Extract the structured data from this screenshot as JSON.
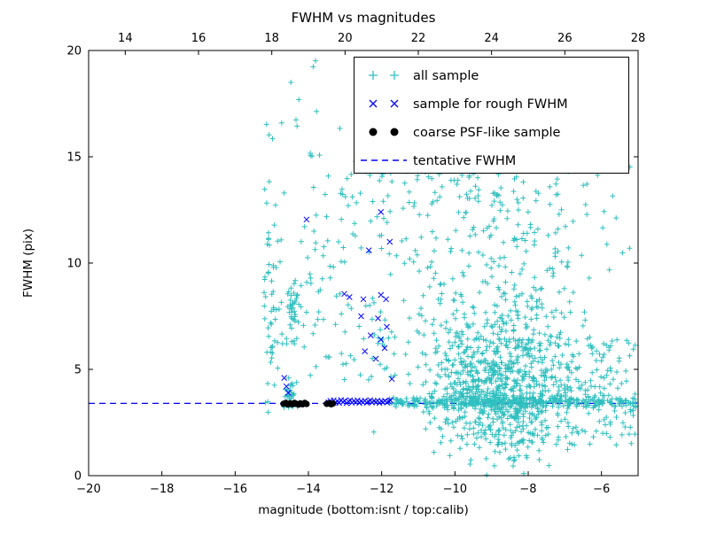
{
  "chart_data": {
    "type": "scatter",
    "title": "FWHM vs magnitudes",
    "xlabel": "magnitude (bottom:isnt / top:calib)",
    "ylabel": "FWHM (pix)",
    "axes": {
      "x_bottom": {
        "min": -20,
        "max": -5,
        "ticks": [
          -20,
          -18,
          -16,
          -14,
          -12,
          -10,
          -8,
          -6
        ]
      },
      "x_top": {
        "min": 13,
        "max": 28,
        "ticks": [
          14,
          16,
          18,
          20,
          22,
          24,
          26,
          28
        ]
      },
      "y": {
        "min": 0,
        "max": 20,
        "ticks": [
          0,
          5,
          10,
          15,
          20
        ]
      }
    },
    "grid": false,
    "legend_position": "upper right",
    "series": [
      {
        "name": "all sample",
        "marker": "plus",
        "color": "#2fbfbf",
        "seed": 7,
        "generated_clusters": [
          {
            "count": 850,
            "x": {
              "dist": "normal",
              "mu": -8.8,
              "sigma": 0.95
            },
            "y": {
              "dist": "normal",
              "mu": 4.3,
              "sigma": 1.7
            }
          },
          {
            "count": 220,
            "x": {
              "dist": "normal",
              "mu": -8.6,
              "sigma": 1.1
            },
            "y": {
              "dist": "uniform",
              "min": 6.0,
              "max": 14.5
            }
          },
          {
            "count": 320,
            "x": {
              "dist": "uniform",
              "min": -11.8,
              "max": -5.05
            },
            "y": {
              "dist": "normal",
              "mu": 3.45,
              "sigma": 0.14
            }
          },
          {
            "count": 120,
            "x": {
              "dist": "uniform",
              "min": -7.2,
              "max": -5.05
            },
            "y": {
              "dist": "uniform",
              "min": 1.8,
              "max": 6.5
            }
          },
          {
            "count": 55,
            "x": {
              "dist": "normal",
              "mu": -15.0,
              "sigma": 0.12
            },
            "y": {
              "dist": "uniform",
              "min": 2.9,
              "max": 14.2
            }
          },
          {
            "count": 45,
            "x": {
              "dist": "normal",
              "mu": -14.45,
              "sigma": 0.12
            },
            "y": {
              "dist": "uniform",
              "min": 6.2,
              "max": 9.2
            }
          },
          {
            "count": 30,
            "x": {
              "dist": "normal",
              "mu": -14.5,
              "sigma": 0.1
            },
            "y": {
              "dist": "uniform",
              "min": 3.2,
              "max": 4.8
            }
          },
          {
            "count": 150,
            "x": {
              "dist": "uniform",
              "min": -14.2,
              "max": -10.3
            },
            "y": {
              "dist": "uniform",
              "min": 4.5,
              "max": 15.2
            }
          },
          {
            "count": 60,
            "x": {
              "dist": "uniform",
              "min": -13.2,
              "max": -5.2
            },
            "y": {
              "dist": "uniform",
              "min": 9.5,
              "max": 16.5
            }
          },
          {
            "count": 25,
            "x": {
              "dist": "uniform",
              "min": -15.2,
              "max": -10.5
            },
            "y": {
              "dist": "uniform",
              "min": 15.5,
              "max": 19.6
            }
          },
          {
            "count": 15,
            "x": {
              "dist": "uniform",
              "min": -9.5,
              "max": -5.1
            },
            "y": {
              "dist": "uniform",
              "min": 1.2,
              "max": 2.2
            }
          }
        ]
      },
      {
        "name": "sample for rough FWHM",
        "marker": "x",
        "color": "#0000ff",
        "points": [
          [
            -13.45,
            3.45
          ],
          [
            -13.4,
            3.52
          ],
          [
            -13.36,
            3.4
          ],
          [
            -13.31,
            3.55
          ],
          [
            -13.26,
            3.44
          ],
          [
            -13.21,
            3.5
          ],
          [
            -13.16,
            3.42
          ],
          [
            -13.11,
            3.56
          ],
          [
            -13.06,
            3.46
          ],
          [
            -13.01,
            3.52
          ],
          [
            -12.96,
            3.41
          ],
          [
            -12.91,
            3.49
          ],
          [
            -12.86,
            3.55
          ],
          [
            -12.81,
            3.43
          ],
          [
            -12.76,
            3.51
          ],
          [
            -12.71,
            3.46
          ],
          [
            -12.66,
            3.54
          ],
          [
            -12.61,
            3.42
          ],
          [
            -12.56,
            3.5
          ],
          [
            -12.51,
            3.45
          ],
          [
            -12.46,
            3.53
          ],
          [
            -12.41,
            3.43
          ],
          [
            -12.36,
            3.49
          ],
          [
            -12.31,
            3.55
          ],
          [
            -12.26,
            3.44
          ],
          [
            -12.21,
            3.51
          ],
          [
            -12.16,
            3.46
          ],
          [
            -12.11,
            3.53
          ],
          [
            -12.06,
            3.42
          ],
          [
            -12.01,
            3.5
          ],
          [
            -11.96,
            3.45
          ],
          [
            -11.91,
            3.52
          ],
          [
            -11.86,
            3.44
          ],
          [
            -11.81,
            3.49
          ],
          [
            -11.76,
            3.54
          ],
          [
            -14.05,
            12.05
          ],
          [
            -12.02,
            12.4
          ],
          [
            -11.78,
            11.0
          ],
          [
            -12.35,
            10.6
          ],
          [
            -13.02,
            8.55
          ],
          [
            -12.88,
            8.4
          ],
          [
            -12.5,
            8.3
          ],
          [
            -12.02,
            8.5
          ],
          [
            -11.88,
            8.3
          ],
          [
            -12.56,
            7.5
          ],
          [
            -12.1,
            7.4
          ],
          [
            -11.86,
            7.0
          ],
          [
            -12.3,
            6.6
          ],
          [
            -12.02,
            6.4
          ],
          [
            -11.92,
            6.0
          ],
          [
            -12.46,
            5.85
          ],
          [
            -12.16,
            5.5
          ],
          [
            -14.66,
            4.6
          ],
          [
            -14.6,
            4.2
          ],
          [
            -14.55,
            3.9
          ],
          [
            -11.72,
            4.55
          ]
        ]
      },
      {
        "name": "coarse PSF-like sample",
        "marker": "dot",
        "color": "#000000",
        "points": [
          [
            -14.68,
            3.38
          ],
          [
            -14.62,
            3.42
          ],
          [
            -14.56,
            3.35
          ],
          [
            -14.5,
            3.4
          ],
          [
            -14.44,
            3.36
          ],
          [
            -14.38,
            3.42
          ],
          [
            -14.33,
            3.38
          ],
          [
            -14.27,
            3.34
          ],
          [
            -14.22,
            3.4
          ],
          [
            -14.16,
            3.36
          ],
          [
            -14.1,
            3.42
          ],
          [
            -14.05,
            3.37
          ],
          [
            -13.5,
            3.38
          ],
          [
            -13.44,
            3.41
          ],
          [
            -13.38,
            3.36
          ],
          [
            -13.33,
            3.39
          ]
        ]
      },
      {
        "name": "tentative FWHM",
        "marker": "dashed-line",
        "color": "#0000ff",
        "y": 3.4
      }
    ]
  }
}
